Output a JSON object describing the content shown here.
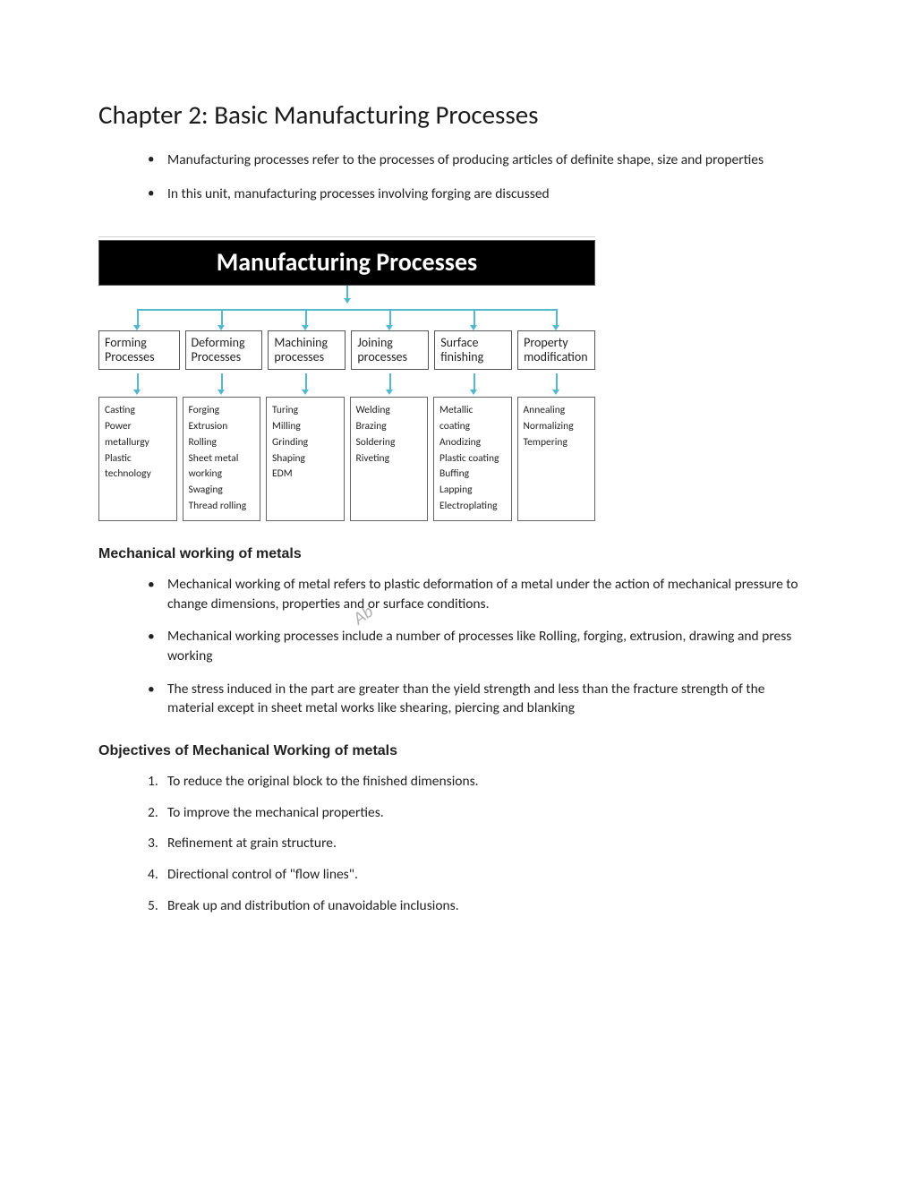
{
  "chapter_title": "Chapter 2: Basic Manufacturing Processes",
  "intro_bullets": [
    "Manufacturing processes refer to the processes of producing articles of definite shape, size and properties",
    "In this unit, manufacturing processes involving forging are discussed"
  ],
  "diagram": {
    "title": "Manufacturing Processes",
    "arrow_color": "#54b9cf",
    "categories": [
      {
        "label": "Forming Processes",
        "subs": [
          "Casting",
          "Power metallurgy",
          "Plastic technology"
        ]
      },
      {
        "label": "Deforming Processes",
        "subs": [
          "Forging",
          "Extrusion",
          "Rolling",
          "Sheet metal working",
          "Swaging",
          "Thread rolling"
        ]
      },
      {
        "label": "Machining processes",
        "subs": [
          "Turing",
          "Milling",
          "Grinding",
          "Shaping",
          "EDM"
        ]
      },
      {
        "label": "Joining processes",
        "subs": [
          "Welding",
          "Brazing",
          "Soldering",
          "Riveting"
        ]
      },
      {
        "label": "Surface finishing",
        "subs": [
          "Metallic coating",
          "Anodizing",
          "Plastic coating",
          "Buffing",
          "Lapping",
          "Electroplating"
        ]
      },
      {
        "label": "Property modification",
        "subs": [
          "Annealing",
          "Normalizing",
          "Tempering"
        ]
      }
    ]
  },
  "watermark": "Ab",
  "section1": {
    "heading": "Mechanical working of metals",
    "bullets": [
      "Mechanical working of metal refers to plastic deformation of a metal under the action of mechanical pressure to change dimensions, properties and or surface conditions.",
      "Mechanical working processes include a number of processes like Rolling, forging, extrusion, drawing and press working",
      "The stress induced in the part are greater than the yield strength and less than the fracture strength of the material except in sheet metal works like shearing, piercing and blanking"
    ]
  },
  "section2": {
    "heading": "Objectives of Mechanical Working of metals",
    "items": [
      "To reduce the original block to the finished dimensions.",
      "To improve the mechanical properties.",
      "Refinement at grain structure.",
      "Directional control of \"flow lines\".",
      "Break up and distribution of unavoidable inclusions."
    ]
  }
}
